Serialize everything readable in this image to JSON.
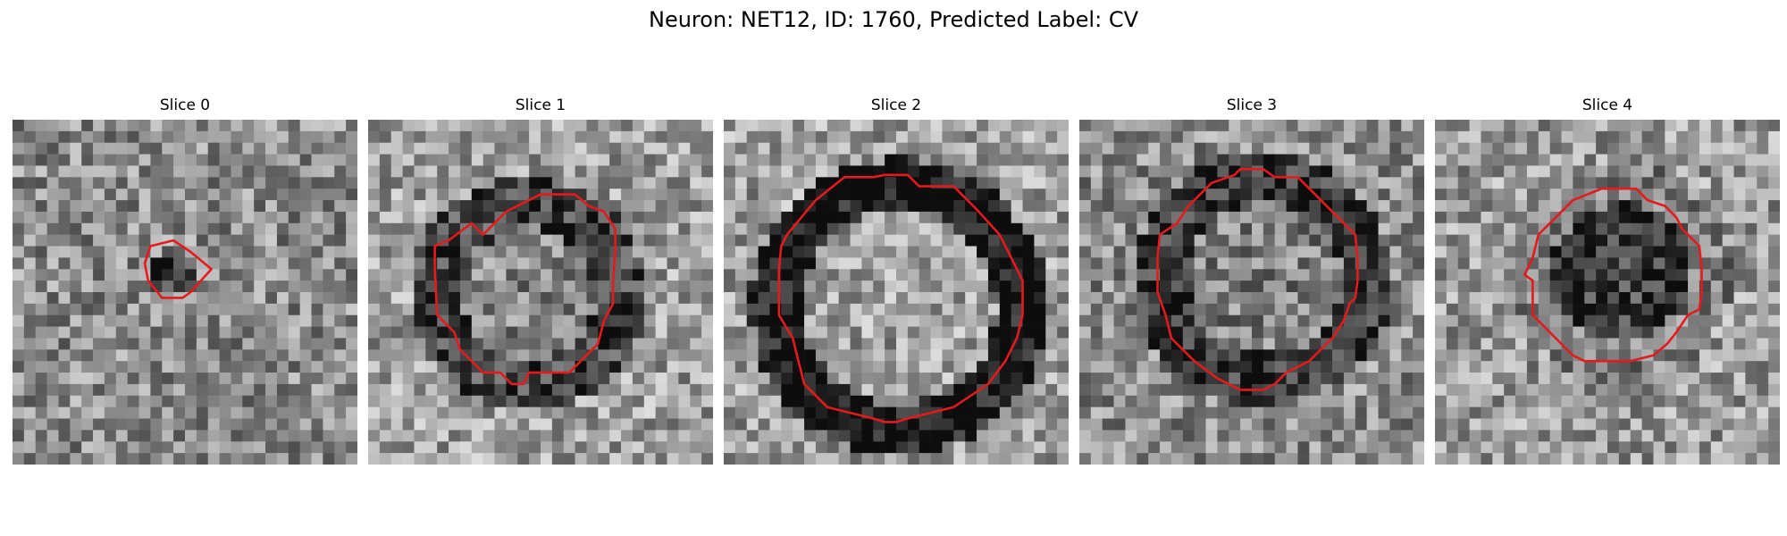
{
  "figure": {
    "title": "Neuron: NET12, ID: 1760, Predicted Label: CV"
  },
  "colors": {
    "contour": "#e41a1c",
    "background": "#ffffff"
  },
  "slices": [
    {
      "label": "Slice 0",
      "base": 0.55,
      "dark": 0.3,
      "ring": 0.0
    },
    {
      "label": "Slice 1",
      "base": 0.62,
      "dark": 0.1,
      "ring": 0.35
    },
    {
      "label": "Slice 2",
      "base": 0.62,
      "dark": 0.0,
      "ring": 0.55
    },
    {
      "label": "Slice 3",
      "base": 0.55,
      "dark": 0.05,
      "ring": 0.35
    },
    {
      "label": "Slice 4",
      "base": 0.6,
      "dark": 0.35,
      "ring": 0.1
    }
  ]
}
